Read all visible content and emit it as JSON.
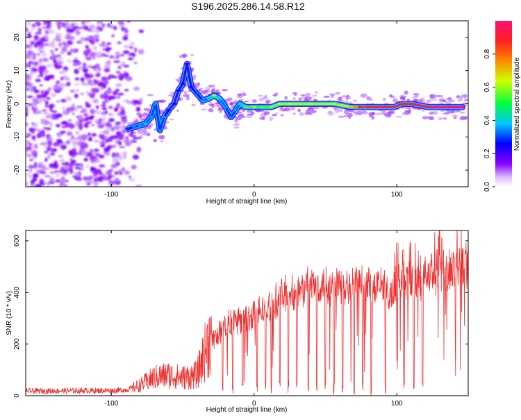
{
  "title": "S196.2025.286.14.58.R12",
  "chart_data": [
    {
      "type": "heatmap",
      "name": "spectrogram",
      "xlabel": "Height of straight line (km)",
      "ylabel": "Frequency (Hz)",
      "xlim": [
        -160,
        150
      ],
      "ylim": [
        -25,
        25
      ],
      "xticks": [
        -100,
        0,
        100
      ],
      "yticks": [
        -20,
        -10,
        0,
        10,
        20
      ],
      "xtick_labels": [
        "-100",
        "0",
        "100"
      ],
      "ytick_labels": [
        "-20",
        "-10",
        "0",
        "10",
        "20"
      ],
      "noise_region_x": [
        -160,
        -85
      ],
      "ridge": [
        {
          "x": -88,
          "y": -7.5,
          "amp": 0.22
        },
        {
          "x": -84,
          "y": -7,
          "amp": 0.28
        },
        {
          "x": -80,
          "y": -6.5,
          "amp": 0.3
        },
        {
          "x": -76,
          "y": -6,
          "amp": 0.33
        },
        {
          "x": -72,
          "y": -4,
          "amp": 0.3
        },
        {
          "x": -69,
          "y": 0,
          "amp": 0.3
        },
        {
          "x": -66,
          "y": -8,
          "amp": 0.28
        },
        {
          "x": -63,
          "y": -4,
          "amp": 0.3
        },
        {
          "x": -60,
          "y": -2,
          "amp": 0.2
        },
        {
          "x": -56,
          "y": 0,
          "amp": 0.18
        },
        {
          "x": -53,
          "y": 4,
          "amp": 0.2
        },
        {
          "x": -50,
          "y": 6,
          "amp": 0.22
        },
        {
          "x": -47,
          "y": 12,
          "amp": 0.18
        },
        {
          "x": -44,
          "y": 5,
          "amp": 0.22
        },
        {
          "x": -40,
          "y": 3,
          "amp": 0.25
        },
        {
          "x": -36,
          "y": 1,
          "amp": 0.3
        },
        {
          "x": -32,
          "y": 1.5,
          "amp": 0.32
        },
        {
          "x": -28,
          "y": 2.5,
          "amp": 0.55
        },
        {
          "x": -24,
          "y": 1.5,
          "amp": 0.35
        },
        {
          "x": -20,
          "y": -1,
          "amp": 0.3
        },
        {
          "x": -16,
          "y": -4,
          "amp": 0.28
        },
        {
          "x": -13,
          "y": -2,
          "amp": 0.3
        },
        {
          "x": -10,
          "y": 0,
          "amp": 0.35
        },
        {
          "x": -6,
          "y": -1,
          "amp": 0.5
        },
        {
          "x": 0,
          "y": -1,
          "amp": 0.55
        },
        {
          "x": 6,
          "y": -1,
          "amp": 0.5
        },
        {
          "x": 12,
          "y": -1,
          "amp": 0.55
        },
        {
          "x": 18,
          "y": 0,
          "amp": 0.6
        },
        {
          "x": 25,
          "y": 0,
          "amp": 0.6
        },
        {
          "x": 32,
          "y": 0,
          "amp": 0.62
        },
        {
          "x": 40,
          "y": 0,
          "amp": 0.6
        },
        {
          "x": 48,
          "y": 0,
          "amp": 0.62
        },
        {
          "x": 56,
          "y": 0,
          "amp": 0.6
        },
        {
          "x": 62,
          "y": -0.5,
          "amp": 0.6
        },
        {
          "x": 68,
          "y": -1,
          "amp": 0.65
        },
        {
          "x": 74,
          "y": -1,
          "amp": 0.85
        },
        {
          "x": 80,
          "y": -1,
          "amp": 0.85
        },
        {
          "x": 86,
          "y": -1,
          "amp": 0.9
        },
        {
          "x": 92,
          "y": -1,
          "amp": 0.88
        },
        {
          "x": 98,
          "y": -1,
          "amp": 0.9
        },
        {
          "x": 104,
          "y": 0,
          "amp": 0.88
        },
        {
          "x": 110,
          "y": 0,
          "amp": 0.92
        },
        {
          "x": 116,
          "y": -0.5,
          "amp": 0.9
        },
        {
          "x": 122,
          "y": -1,
          "amp": 0.92
        },
        {
          "x": 128,
          "y": -1,
          "amp": 0.95
        },
        {
          "x": 134,
          "y": -1,
          "amp": 0.97
        },
        {
          "x": 140,
          "y": -1,
          "amp": 0.98
        },
        {
          "x": 146,
          "y": -1,
          "amp": 0.98
        }
      ],
      "colorbar": {
        "label": "Normalized spectral amplitude",
        "range": [
          0,
          1
        ],
        "ticks": [
          0.0,
          0.2,
          0.4,
          0.6,
          0.8
        ],
        "tick_labels": [
          "0.0",
          "0.2",
          "0.4",
          "0.6",
          "0.8"
        ]
      }
    },
    {
      "type": "line",
      "name": "snr",
      "xlabel": "Height of straight line (km)",
      "ylabel": "SNR (10 * v/v)",
      "xlim": [
        -160,
        150
      ],
      "ylim": [
        0,
        640
      ],
      "xticks": [
        -100,
        0,
        100
      ],
      "yticks": [
        0,
        200,
        400,
        600
      ],
      "xtick_labels": [
        "-100",
        "0",
        "100"
      ],
      "ytick_labels": [
        "0",
        "200",
        "400",
        "600"
      ],
      "color": "#f03030",
      "envelope": {
        "x": [
          -160,
          -100,
          -90,
          -80,
          -70,
          -60,
          -50,
          -40,
          -30,
          -20,
          -10,
          0,
          10,
          20,
          30,
          40,
          50,
          60,
          70,
          80,
          90,
          95,
          100,
          110,
          120,
          130,
          140,
          150
        ],
        "snr": [
          18,
          20,
          22,
          40,
          70,
          80,
          70,
          80,
          240,
          300,
          330,
          350,
          380,
          430,
          450,
          470,
          480,
          480,
          480,
          470,
          470,
          420,
          500,
          480,
          520,
          540,
          550,
          560
        ]
      },
      "dropouts_x": [
        -22,
        -15,
        -8,
        2,
        8,
        12,
        18,
        24,
        30,
        38,
        44,
        50,
        56,
        62,
        70,
        76,
        82,
        92,
        105,
        112,
        118
      ]
    }
  ]
}
